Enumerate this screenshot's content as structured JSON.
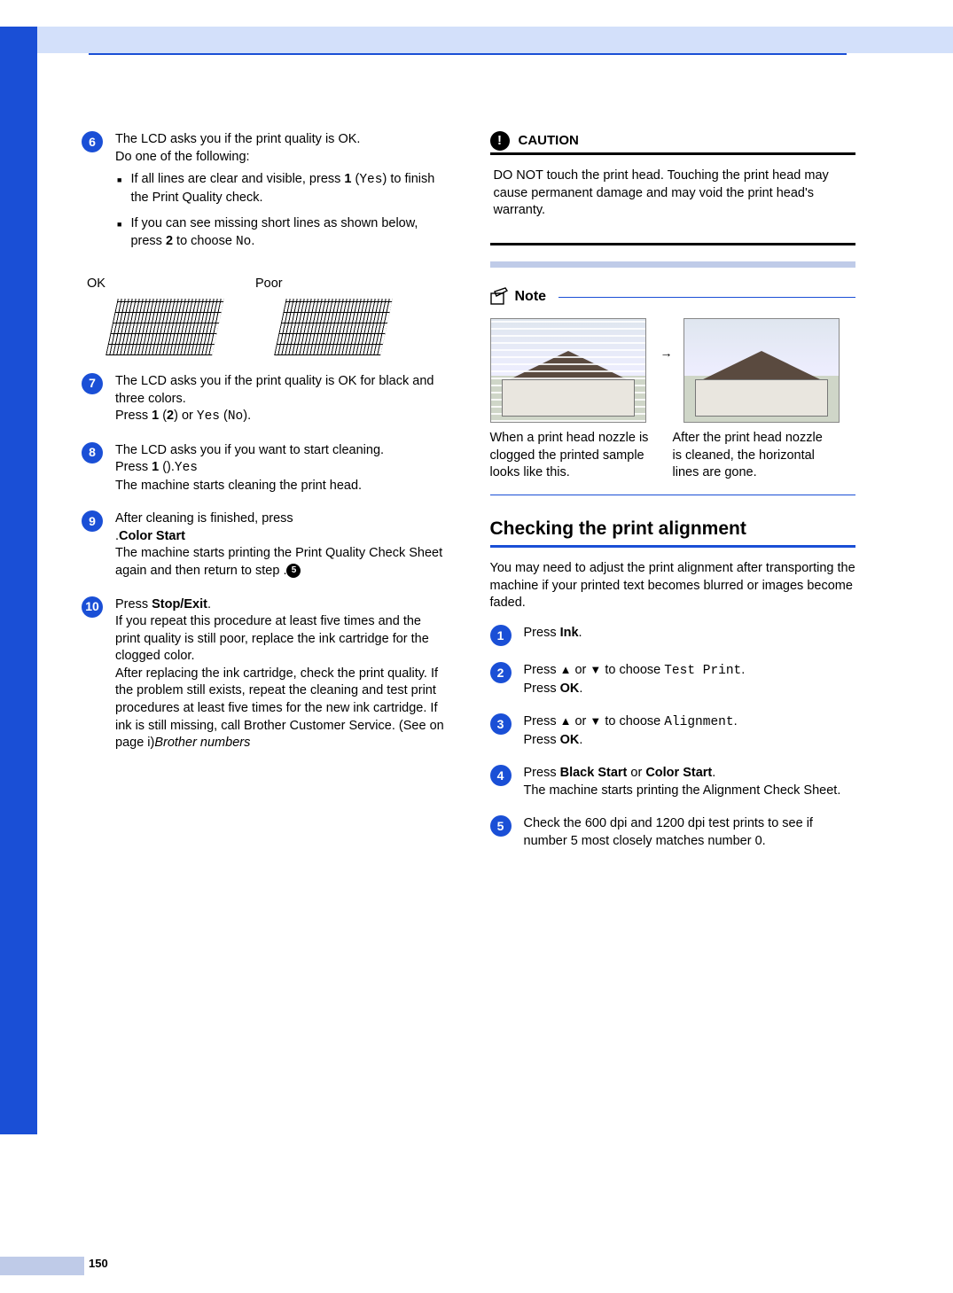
{
  "page_number": "150",
  "left": {
    "steps": [
      {
        "n": "6",
        "text_parts": [
          "The LCD asks you if the print quality is OK.",
          "Do one of the following:"
        ],
        "bullets": [
          {
            "pre": "If all lines are clear and visible, press ",
            "bold": "1",
            "mid": " (",
            "mono": "Yes",
            "post": ") to finish the Print Quality check."
          },
          {
            "pre": "If you can see missing short lines as shown below, press ",
            "bold": "2",
            "mid": " to choose ",
            "mono": "No",
            "post": "."
          }
        ]
      }
    ],
    "ok_label": "OK",
    "poor_label": "Poor",
    "steps2": [
      {
        "n": "7",
        "lines": [
          {
            "t": "The LCD asks you if the print quality is OK for black and three colors."
          },
          {
            "t": "Press ",
            "b": "1",
            "t2": " (",
            "m": "Yes",
            "t3": ") or ",
            "b2": "2",
            "t4": " (",
            "m2": "No",
            "t5": ")."
          }
        ]
      },
      {
        "n": "8",
        "lines": [
          {
            "t": "The LCD asks you if you want to start cleaning."
          },
          {
            "t": "Press ",
            "b": "1",
            "t2": " (",
            "m": "Yes",
            "t3": ")."
          },
          {
            "t": "The machine starts cleaning the print head."
          }
        ]
      },
      {
        "n": "9",
        "lines": [
          {
            "t": "After cleaning is finished, press "
          },
          {
            "b": "Color Start",
            "t": "."
          },
          {
            "t": "The machine starts printing the Print Quality Check Sheet again and then return to step ",
            "ref": "5",
            "t2": "."
          }
        ]
      },
      {
        "n": "10",
        "lines": [
          {
            "t": "Press ",
            "b": "Stop/Exit",
            "t2": "."
          },
          {
            "t": "If you repeat this procedure at least five times and the print quality is still poor, replace the ink cartridge for the clogged color."
          },
          {
            "t": "After replacing the ink cartridge, check the print quality. If the problem still exists, repeat the cleaning and test print procedures at least five times for the new ink cartridge. If ink is still missing, call Brother Customer Service. (See ",
            "i": "Brother numbers",
            "t2": " on page i)"
          }
        ]
      }
    ]
  },
  "right": {
    "caution_title": "CAUTION",
    "caution_body": "DO NOT touch the print head. Touching the print head may cause permanent damage and may void the print head's warranty.",
    "note_title": "Note",
    "note_caption_left": "When a print head nozzle is clogged the printed sample looks like this.",
    "note_caption_right": "After the print head nozzle is cleaned, the horizontal lines are gone.",
    "section_title": "Checking the print alignment",
    "section_intro": "You may need to adjust the print alignment after transporting the machine if your printed text becomes blurred or images become faded.",
    "steps": [
      {
        "n": "1",
        "l": [
          {
            "t": "Press ",
            "b": "Ink",
            "t2": "."
          }
        ]
      },
      {
        "n": "2",
        "l": [
          {
            "t": "Press ",
            "ar": "▲",
            "t2": " or ",
            "ar2": "▼",
            "t3": " to choose ",
            "m": "Test Print",
            "t4": "."
          },
          {
            "t": "Press ",
            "b": "OK",
            "t2": "."
          }
        ]
      },
      {
        "n": "3",
        "l": [
          {
            "t": "Press ",
            "ar": "▲",
            "t2": " or ",
            "ar2": "▼",
            "t3": " to choose ",
            "m": "Alignment",
            "t4": "."
          },
          {
            "t": "Press ",
            "b": "OK",
            "t2": "."
          }
        ]
      },
      {
        "n": "4",
        "l": [
          {
            "t": "Press ",
            "b": "Black Start",
            "t2": " or ",
            "b2": "Color Start",
            "t3": "."
          },
          {
            "t": "The machine starts printing the Alignment Check Sheet."
          }
        ]
      },
      {
        "n": "5",
        "l": [
          {
            "t": "Check the 600 dpi and 1200 dpi test prints to see if number 5 most closely matches number 0."
          }
        ]
      }
    ]
  },
  "colors": {
    "brand": "#1a4fd6",
    "pale": "#d3e0fa",
    "shade": "#bfcbe8"
  }
}
